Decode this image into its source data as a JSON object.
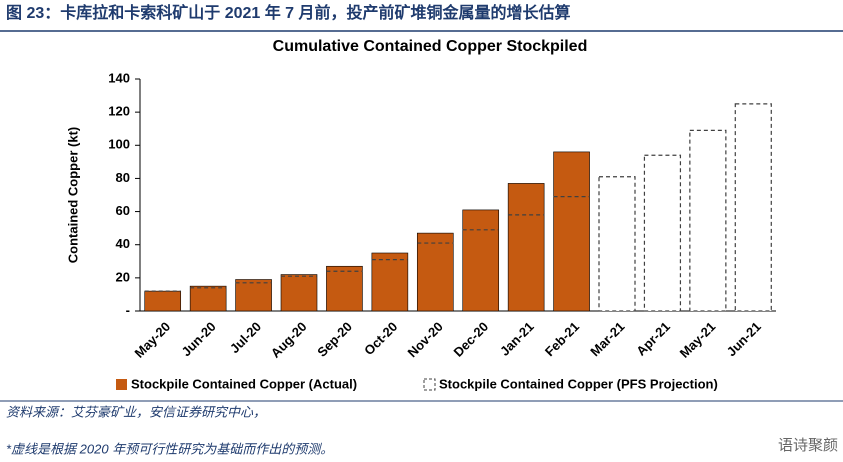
{
  "header": {
    "title": "图 23：卡库拉和卡索科矿山于 2021 年 7 月前，投产前矿堆铜金属量的增长估算"
  },
  "chart_data": {
    "type": "bar",
    "title": "Cumulative Contained Copper Stockpiled",
    "y_label": "Contained Copper (kt)",
    "categories": [
      "May-20",
      "Jun-20",
      "Jul-20",
      "Aug-20",
      "Sep-20",
      "Oct-20",
      "Nov-20",
      "Dec-20",
      "Jan-21",
      "Feb-21",
      "Mar-21",
      "Apr-21",
      "May-21",
      "Jun-21"
    ],
    "series": [
      {
        "name": "Stockpile Contained Copper (Actual)",
        "color": "#c55a11",
        "values": [
          12,
          15,
          19,
          22,
          27,
          35,
          47,
          61,
          77,
          96,
          null,
          null,
          null,
          null
        ]
      },
      {
        "name": "Stockpile Contained Copper (PFS Projection)",
        "color": "#404040",
        "values": [
          12,
          14,
          17,
          21,
          24,
          31,
          41,
          49,
          58,
          69,
          81,
          94,
          109,
          125
        ]
      }
    ],
    "ylim": [
      0,
      140
    ],
    "yticks": [
      {
        "value": 0,
        "label": "-"
      },
      20,
      40,
      60,
      80,
      100,
      120,
      140
    ]
  },
  "footer": {
    "source": "资料来源：艾芬豪矿业，安信证券研究中心，",
    "note": "*虚线是根据 2020 年预可行性研究为基础而作出的预测。",
    "watermark": "语诗聚颜"
  }
}
